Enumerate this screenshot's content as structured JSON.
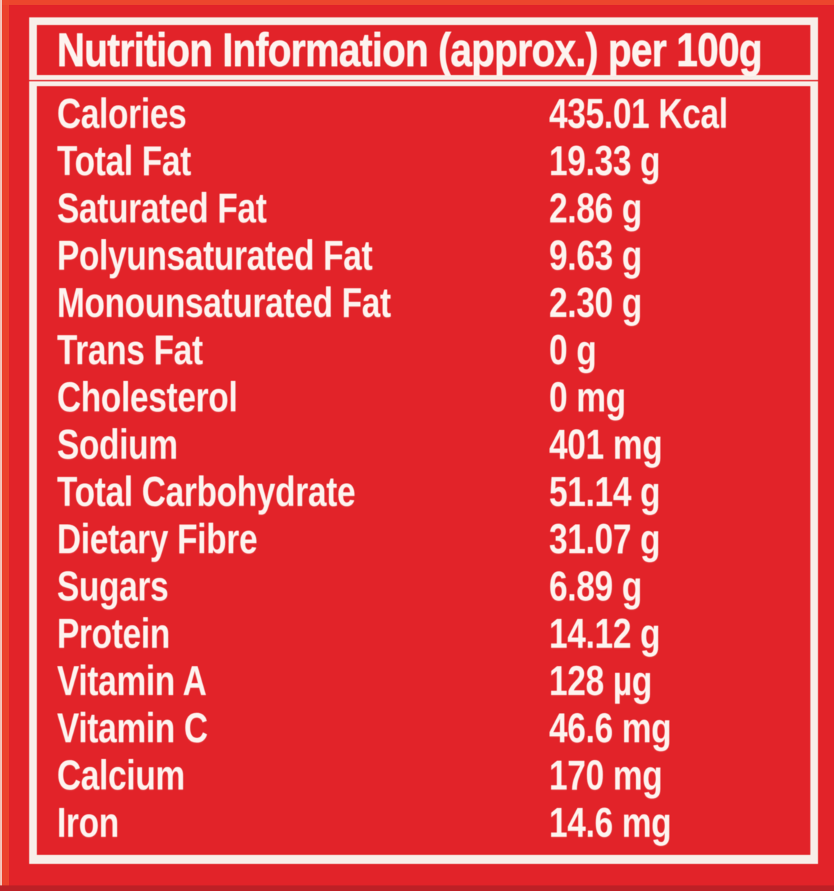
{
  "label": {
    "title": "Nutrition Information (approx.) per 100g",
    "rows": [
      {
        "label": "Calories",
        "value": "435.01 Kcal"
      },
      {
        "label": "Total Fat",
        "value": "19.33 g"
      },
      {
        "label": "Saturated Fat",
        "value": "2.86 g"
      },
      {
        "label": "Polyunsaturated Fat",
        "value": "9.63 g"
      },
      {
        "label": "Monounsaturated Fat",
        "value": "2.30 g"
      },
      {
        "label": "Trans Fat",
        "value": "0 g"
      },
      {
        "label": "Cholesterol",
        "value": "0 mg"
      },
      {
        "label": "Sodium",
        "value": "401 mg"
      },
      {
        "label": "Total Carbohydrate",
        "value": "51.14 g"
      },
      {
        "label": "Dietary Fibre",
        "value": "31.07 g"
      },
      {
        "label": "Sugars",
        "value": "6.89 g"
      },
      {
        "label": "Protein",
        "value": "14.12 g"
      },
      {
        "label": "Vitamin A",
        "value": "128 µg"
      },
      {
        "label": "Vitamin C",
        "value": "46.6 mg"
      },
      {
        "label": "Calcium",
        "value": "170 mg"
      },
      {
        "label": "Iron",
        "value": "14.6 mg"
      }
    ],
    "colors": {
      "red": "#e22329",
      "frame-white": "#f8efe9",
      "text-white": "#fdf3ef",
      "edge-orange": "#ed4a2d",
      "edge-dark": "#bd2026",
      "edge-pale": "#f3c0b4"
    }
  }
}
